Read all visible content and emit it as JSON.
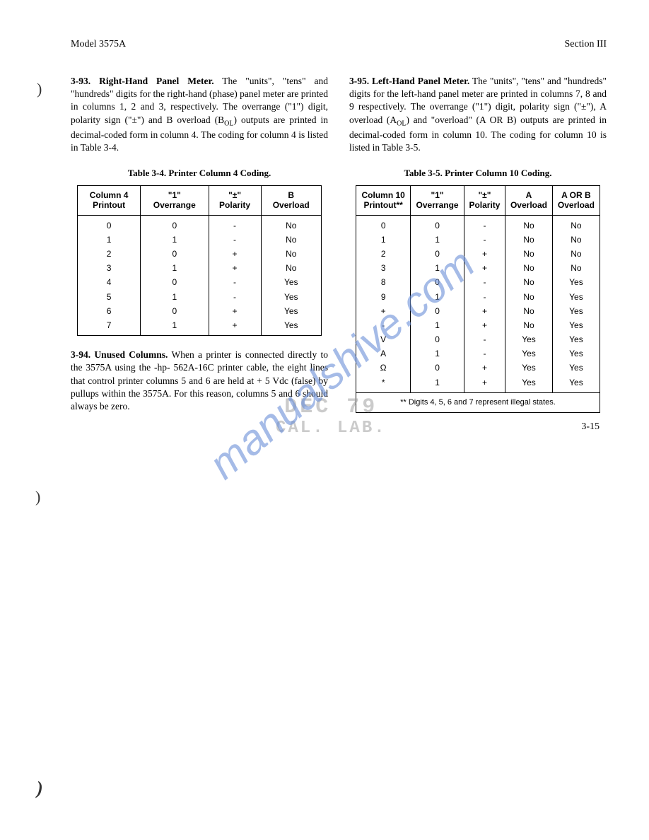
{
  "header": {
    "model": "Model 3575A",
    "section": "Section III"
  },
  "left_col": {
    "p393_heading": "3-93. Right-Hand Panel Meter.",
    "p393_body": " The \"units\", \"tens\" and \"hundreds\" digits for the right-hand (phase) panel meter are printed in columns 1, 2 and 3, respectively. The overrange (\"1\") digit, polarity sign (\"±\") and B overload (BOL) outputs are printed in decimal-coded form in column 4. The coding for column 4 is listed in Table 3-4.",
    "table34": {
      "caption": "Table 3-4.  Printer Column 4 Coding.",
      "headers": [
        "Column 4\nPrintout",
        "\"1\"\nOverrange",
        "\"±\"\nPolarity",
        "B\nOverload"
      ],
      "rows": [
        [
          "0",
          "0",
          "-",
          "No"
        ],
        [
          "1",
          "1",
          "-",
          "No"
        ],
        [
          "2",
          "0",
          "+",
          "No"
        ],
        [
          "3",
          "1",
          "+",
          "No"
        ],
        [
          "4",
          "0",
          "-",
          "Yes"
        ],
        [
          "5",
          "1",
          "-",
          "Yes"
        ],
        [
          "6",
          "0",
          "+",
          "Yes"
        ],
        [
          "7",
          "1",
          "+",
          "Yes"
        ]
      ]
    },
    "p394_heading": "3-94. Unused Columns.",
    "p394_body": " When a printer is connected directly to the 3575A using the -hp- 562A-16C printer cable, the eight lines that control printer columns 5 and 6 are held at + 5 Vdc (false) by pullups within the 3575A. For this reason, columns 5 and 6 should always be zero."
  },
  "right_col": {
    "p395_heading": "3-95. Left-Hand Panel Meter.",
    "p395_body": " The \"units\", \"tens\" and \"hundreds\" digits for the left-hand panel meter are printed in columns 7, 8 and 9 respectively. The overrange (\"1\") digit, polarity sign (\"±\"), A overload (AOL) and \"overload\" (A OR B) outputs are printed in decimal-coded form in column 10. The coding for column 10 is listed in Table 3-5.",
    "table35": {
      "caption": "Table 3-5.  Printer Column 10 Coding.",
      "headers": [
        "Column 10\nPrintout**",
        "\"1\"\nOverrange",
        "\"±\"\nPolarity",
        "A\nOverload",
        "A OR B\nOverload"
      ],
      "rows": [
        [
          "0",
          "0",
          "-",
          "No",
          "No"
        ],
        [
          "1",
          "1",
          "-",
          "No",
          "No"
        ],
        [
          "2",
          "0",
          "+",
          "No",
          "No"
        ],
        [
          "3",
          "1",
          "+",
          "No",
          "No"
        ],
        [
          "8",
          "0",
          "-",
          "No",
          "Yes"
        ],
        [
          "9",
          "1",
          "-",
          "No",
          "Yes"
        ],
        [
          "+",
          "0",
          "+",
          "No",
          "Yes"
        ],
        [
          "-",
          "1",
          "+",
          "No",
          "Yes"
        ],
        [
          "V",
          "0",
          "-",
          "Yes",
          "Yes"
        ],
        [
          "A",
          "1",
          "-",
          "Yes",
          "Yes"
        ],
        [
          "Ω",
          "0",
          "+",
          "Yes",
          "Yes"
        ],
        [
          "*",
          "1",
          "+",
          "Yes",
          "Yes"
        ]
      ],
      "footnote": "** Digits 4, 5, 6 and 7 represent illegal states."
    }
  },
  "stamp": {
    "line1": "DEC 79",
    "line2": "CAL. LAB."
  },
  "watermark": "manualshive.com",
  "page_number": "3-15"
}
